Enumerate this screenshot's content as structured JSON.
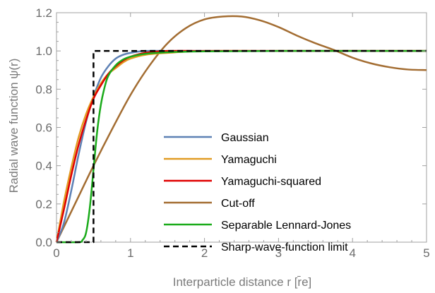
{
  "chart_data": {
    "type": "line",
    "xlabel": "Interparticle distance r [r̄e]",
    "ylabel": "Radial wave function ψ(r)",
    "xlim": [
      0,
      5
    ],
    "ylim": [
      0,
      1.2
    ],
    "xticks": [
      0,
      1,
      2,
      3,
      4,
      5
    ],
    "yticks": [
      0.0,
      0.2,
      0.4,
      0.6,
      0.8,
      1.0,
      1.2
    ],
    "xtick_labels": [
      "0",
      "1",
      "2",
      "3",
      "4",
      "5"
    ],
    "ytick_labels": [
      "0.0",
      "0.2",
      "0.4",
      "0.6",
      "0.8",
      "1.0",
      "1.2"
    ],
    "grid": false,
    "legend_position": "center-right",
    "series": [
      {
        "name": "Gaussian",
        "color": "#5e81b5",
        "dash": "solid",
        "x": [
          0,
          0.1,
          0.2,
          0.3,
          0.4,
          0.5,
          0.6,
          0.7,
          0.8,
          0.9,
          1.0,
          1.2,
          1.5,
          2.0,
          3.0,
          5.0
        ],
        "y": [
          0,
          0.1,
          0.27,
          0.46,
          0.63,
          0.76,
          0.86,
          0.92,
          0.96,
          0.98,
          0.99,
          1.0,
          1.0,
          1.0,
          1.0,
          1.0
        ]
      },
      {
        "name": "Yamaguchi",
        "color": "#e19c24",
        "dash": "solid",
        "x": [
          0,
          0.1,
          0.2,
          0.3,
          0.4,
          0.5,
          0.6,
          0.7,
          0.8,
          0.9,
          1.0,
          1.2,
          1.5,
          2.0,
          3.0,
          5.0
        ],
        "y": [
          0,
          0.21,
          0.39,
          0.55,
          0.67,
          0.76,
          0.83,
          0.88,
          0.91,
          0.94,
          0.96,
          0.98,
          0.99,
          1.0,
          1.0,
          1.0
        ]
      },
      {
        "name": "Yamaguchi-squared",
        "color": "#e00000",
        "dash": "solid",
        "x": [
          0,
          0.1,
          0.2,
          0.3,
          0.4,
          0.5,
          0.6,
          0.7,
          0.8,
          0.9,
          1.0,
          1.2,
          1.5,
          2.0,
          3.0,
          5.0
        ],
        "y": [
          0,
          0.17,
          0.35,
          0.51,
          0.64,
          0.75,
          0.82,
          0.88,
          0.92,
          0.95,
          0.97,
          0.99,
          1.0,
          1.0,
          1.0,
          1.0
        ]
      },
      {
        "name": "Cut-off",
        "color": "#a36d32",
        "dash": "solid",
        "x": [
          0,
          0.25,
          0.5,
          0.75,
          1.0,
          1.25,
          1.5,
          1.75,
          2.0,
          2.25,
          2.5,
          2.75,
          3.0,
          3.25,
          3.5,
          3.75,
          4.0,
          4.25,
          4.5,
          4.75,
          5.0
        ],
        "y": [
          0,
          0.2,
          0.4,
          0.59,
          0.77,
          0.92,
          1.04,
          1.12,
          1.165,
          1.18,
          1.18,
          1.16,
          1.125,
          1.08,
          1.04,
          1.005,
          0.965,
          0.935,
          0.915,
          0.903,
          0.9
        ]
      },
      {
        "name": "Separable Lennard-Jones",
        "color": "#1aab1a",
        "dash": "solid",
        "x": [
          0,
          0.3,
          0.35,
          0.4,
          0.45,
          0.5,
          0.55,
          0.6,
          0.65,
          0.7,
          0.8,
          0.9,
          1.0,
          1.2,
          1.5,
          2.0,
          3.0,
          5.0
        ],
        "y": [
          0,
          0,
          0.01,
          0.05,
          0.18,
          0.38,
          0.58,
          0.72,
          0.81,
          0.87,
          0.925,
          0.955,
          0.97,
          0.985,
          0.993,
          0.998,
          1.0,
          1.0
        ]
      },
      {
        "name": "Sharp-wave-function limit",
        "color": "#000000",
        "dash": "dashed",
        "x": [
          0,
          0.5,
          0.5,
          5.0
        ],
        "y": [
          0,
          0,
          1.0,
          1.0
        ]
      }
    ]
  }
}
